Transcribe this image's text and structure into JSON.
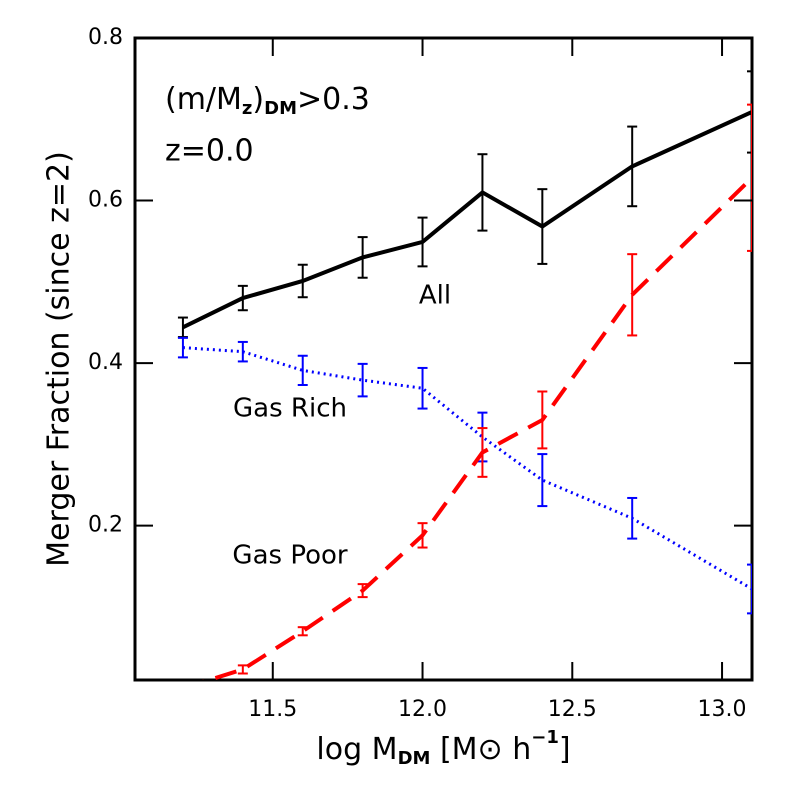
{
  "chart_data": {
    "type": "line",
    "xlabel_parts": [
      "log M",
      "DM",
      " [M",
      "⊙",
      " h",
      "−1",
      "]"
    ],
    "ylabel": "Merger Fraction (since z=2)",
    "annotation_parts": [
      "(m/M",
      "z",
      ")",
      "DM",
      ">0.3"
    ],
    "annotation_2": "z=0.0",
    "x": [
      11.2,
      11.4,
      11.6,
      11.8,
      12.0,
      12.2,
      12.4,
      12.7,
      13.1
    ],
    "series": [
      {
        "name": "All",
        "color": "#000000",
        "linestyle": "solid",
        "values": [
          0.444,
          0.48,
          0.501,
          0.53,
          0.549,
          0.61,
          0.568,
          0.642,
          0.709
        ],
        "errors": [
          0.012,
          0.015,
          0.02,
          0.025,
          0.03,
          0.047,
          0.046,
          0.049,
          0.05
        ]
      },
      {
        "name": "Gas Rich",
        "color": "#0000ff",
        "linestyle": "dotted",
        "values": [
          0.419,
          0.414,
          0.391,
          0.379,
          0.369,
          0.309,
          0.256,
          0.209,
          0.122
        ],
        "errors": [
          0.012,
          0.012,
          0.018,
          0.02,
          0.025,
          0.03,
          0.032,
          0.025,
          0.03
        ]
      },
      {
        "name": "Gas Poor",
        "color": "#ff0000",
        "linestyle": "dashed",
        "values": [
          0.0,
          0.023,
          0.07,
          0.12,
          0.188,
          0.29,
          0.33,
          0.484,
          0.628
        ],
        "errors": [
          0.005,
          0.005,
          0.005,
          0.008,
          0.015,
          0.03,
          0.035,
          0.05,
          0.09
        ]
      }
    ],
    "xlim": [
      11.04,
      13.1
    ],
    "ylim": [
      0.01,
      0.8
    ],
    "xticks": [
      {
        "value": 11.5,
        "label": "11.5"
      },
      {
        "value": 12.0,
        "label": "12.0"
      },
      {
        "value": 12.5,
        "label": "12.5"
      },
      {
        "value": 13.0,
        "label": "13.0"
      }
    ],
    "yticks": [
      0.2,
      0.4,
      0.6,
      0.8
    ]
  }
}
